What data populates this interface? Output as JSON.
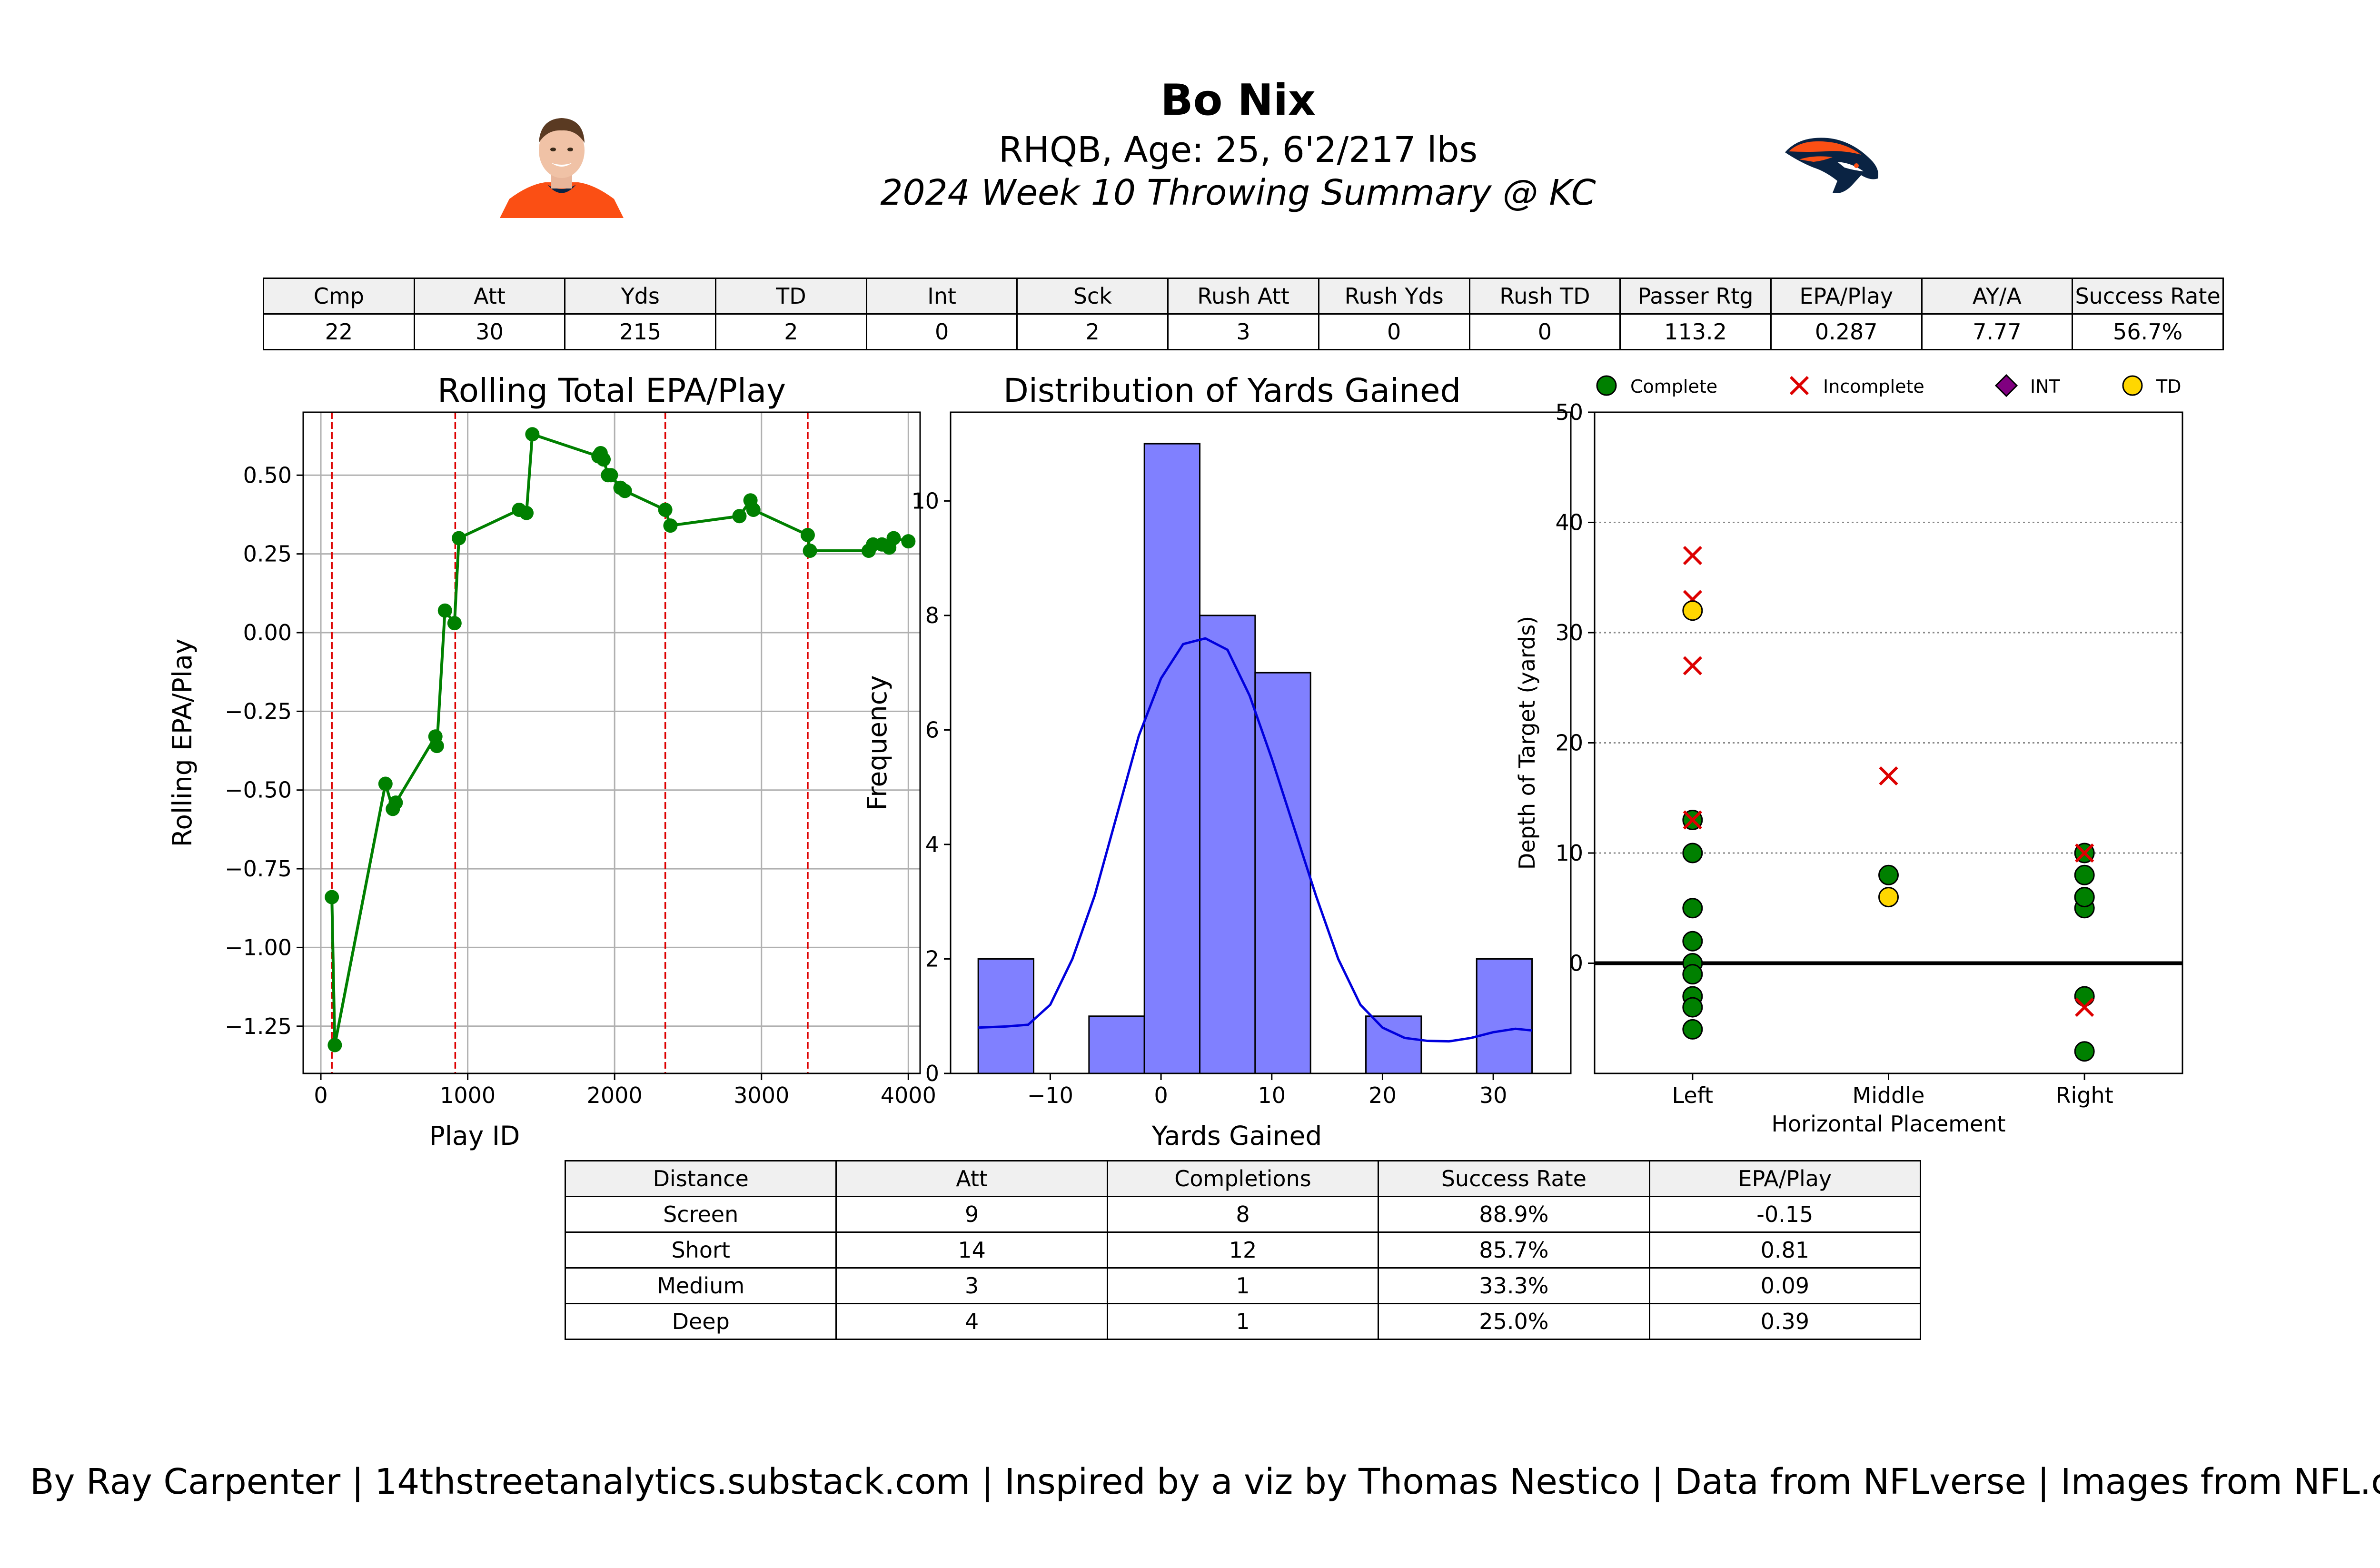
{
  "header": {
    "name": "Bo Nix",
    "bio": "RHQB, Age: 25, 6'2/217 lbs",
    "subtitle": "2024 Week 10 Throwing Summary @ KC"
  },
  "colors": {
    "rolling_line": "#008000",
    "hist_bar": "#8080ff",
    "kde": "#0000dd",
    "halftime": "#dd0000",
    "complete": "#008000",
    "incomplete": "#dd0000",
    "int": "#800080",
    "td": "#ffd700",
    "jersey": "#fb4f14",
    "team_navy": "#0a2343"
  },
  "icons": {
    "player_photo": "headshot",
    "team_logo": "broncos-horse-logo"
  },
  "summary_table": {
    "headers": [
      "Cmp",
      "Att",
      "Yds",
      "TD",
      "Int",
      "Sck",
      "Rush Att",
      "Rush Yds",
      "Rush TD",
      "Passer Rtg",
      "EPA/Play",
      "AY/A",
      "Success Rate"
    ],
    "values": [
      "22",
      "30",
      "215",
      "2",
      "0",
      "2",
      "3",
      "0",
      "0",
      "113.2",
      "0.287",
      "7.77",
      "56.7%"
    ]
  },
  "distance_table": {
    "headers": [
      "Distance",
      "Att",
      "Completions",
      "Success Rate",
      "EPA/Play"
    ],
    "rows": [
      [
        "Screen",
        "9",
        "8",
        "88.9%",
        "-0.15"
      ],
      [
        "Short",
        "14",
        "12",
        "85.7%",
        "0.81"
      ],
      [
        "Medium",
        "3",
        "1",
        "33.3%",
        "0.09"
      ],
      [
        "Deep",
        "4",
        "1",
        "25.0%",
        "0.39"
      ]
    ]
  },
  "chart_data": [
    {
      "type": "line",
      "title": "Rolling Total EPA/Play",
      "xlabel": "Play ID",
      "ylabel": "Rolling EPA/Play",
      "xlim": [
        -120,
        4080
      ],
      "ylim": [
        -1.4,
        0.7
      ],
      "xticks": [
        0,
        1000,
        2000,
        3000,
        4000
      ],
      "yticks": [
        -1.25,
        -1.0,
        -0.75,
        -0.5,
        -0.25,
        0.0,
        0.25,
        0.5
      ],
      "ytick_labels": [
        "−1.25",
        "−1.00",
        "−0.75",
        "−0.50",
        "−0.25",
        "0.00",
        "0.25",
        "0.50"
      ],
      "grid": true,
      "vlines": [
        75,
        915,
        2345,
        3315
      ],
      "x": [
        75,
        95,
        440,
        490,
        510,
        780,
        790,
        845,
        910,
        940,
        1350,
        1400,
        1440,
        1890,
        1905,
        1925,
        1955,
        1975,
        2040,
        2070,
        2345,
        2380,
        2850,
        2925,
        2945,
        3315,
        3330,
        3730,
        3760,
        3820,
        3870,
        3900,
        4000
      ],
      "y": [
        -0.84,
        -1.31,
        -0.48,
        -0.56,
        -0.54,
        -0.33,
        -0.36,
        0.07,
        0.03,
        0.3,
        0.39,
        0.38,
        0.63,
        0.56,
        0.57,
        0.55,
        0.5,
        0.5,
        0.46,
        0.45,
        0.39,
        0.34,
        0.37,
        0.42,
        0.39,
        0.31,
        0.26,
        0.26,
        0.28,
        0.28,
        0.27,
        0.3,
        0.29
      ]
    },
    {
      "type": "bar",
      "title": "Distribution of Yards Gained",
      "xlabel": "Yards Gained",
      "ylabel": "Frequency",
      "xlim": [
        -19,
        37
      ],
      "ylim": [
        0,
        11.55
      ],
      "xticks": [
        -10,
        0,
        10,
        20,
        30
      ],
      "xtick_labels": [
        "−10",
        "0",
        "10",
        "20",
        "30"
      ],
      "yticks": [
        0,
        2,
        4,
        6,
        8,
        10
      ],
      "bin_edges": [
        -16.5,
        -11.5,
        -6.5,
        -1.5,
        3.5,
        8.5,
        13.5,
        18.5,
        23.5,
        28.5,
        33.5
      ],
      "values": [
        2,
        0,
        1,
        11,
        8,
        7,
        0,
        1,
        0,
        2
      ],
      "kde": {
        "x": [
          -16.5,
          -14,
          -12,
          -10,
          -8,
          -6,
          -4,
          -2,
          0,
          2,
          4,
          6,
          8,
          10,
          12,
          14,
          16,
          18,
          20,
          22,
          24,
          26,
          28,
          30,
          32,
          33.5
        ],
        "y": [
          0.8,
          0.82,
          0.85,
          1.2,
          2.0,
          3.1,
          4.5,
          5.9,
          6.9,
          7.5,
          7.6,
          7.4,
          6.6,
          5.5,
          4.3,
          3.1,
          2.0,
          1.2,
          0.8,
          0.62,
          0.57,
          0.56,
          0.62,
          0.72,
          0.78,
          0.75
        ]
      }
    },
    {
      "type": "scatter",
      "xlabel": "Horizontal Placement",
      "ylabel": "Depth of Target (yards)",
      "categories": [
        "Left",
        "Middle",
        "Right"
      ],
      "xlim": [
        -0.5,
        2.5
      ],
      "ylim": [
        -10,
        50
      ],
      "yticks": [
        0,
        10,
        20,
        30,
        40,
        50
      ],
      "grid_y": [
        10,
        20,
        30,
        40
      ],
      "legend_position": "top",
      "series": [
        {
          "name": "Complete",
          "marker": "circle",
          "x": [
            0,
            0,
            0,
            0,
            0,
            0,
            0,
            0,
            0,
            1,
            2,
            2,
            2,
            2,
            2,
            2,
            2
          ],
          "y": [
            13,
            10,
            5,
            2,
            0,
            -1,
            -3,
            -4,
            -6,
            8,
            10,
            8,
            6,
            5,
            -3,
            -8,
            6
          ]
        },
        {
          "name": "Incomplete",
          "marker": "x",
          "x": [
            0,
            0,
            0,
            0,
            1,
            2,
            2
          ],
          "y": [
            37,
            33,
            27,
            13,
            17,
            10,
            -4
          ]
        },
        {
          "name": "INT",
          "marker": "diamond",
          "x": [],
          "y": []
        },
        {
          "name": "TD",
          "marker": "circle",
          "x": [
            0,
            1
          ],
          "y": [
            32,
            6
          ]
        }
      ]
    }
  ],
  "footer": {
    "credit": "By Ray Carpenter | 14thstreetanalytics.substack.com | Inspired by a viz by Thomas Nestico | Data from NFLverse | Images from NFL.com"
  }
}
